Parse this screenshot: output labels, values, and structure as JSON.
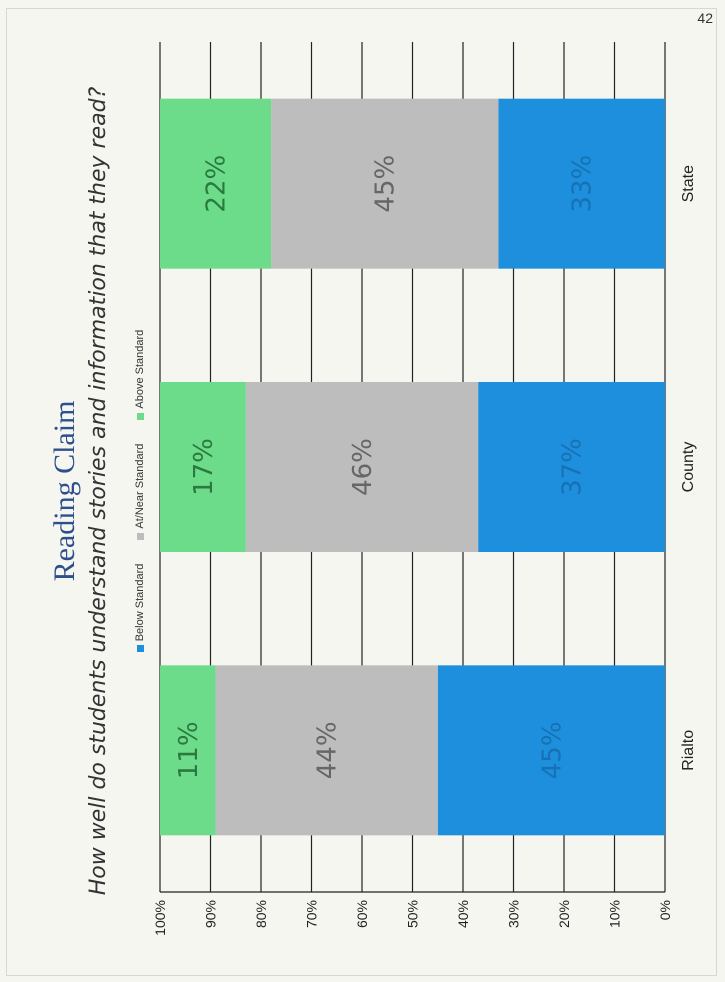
{
  "page_number": "42",
  "chart_data": {
    "type": "bar",
    "stacked": true,
    "title": "Reading Claim",
    "subtitle": "How well do students understand stories and information that they read?",
    "categories": [
      "Rialto",
      "County",
      "State"
    ],
    "series": [
      {
        "name": "Below Standard",
        "values": [
          45,
          37,
          33
        ],
        "color": "#1e8fdc",
        "labels": [
          "45%",
          "37%",
          "33%"
        ]
      },
      {
        "name": "At/Near Standard",
        "values": [
          44,
          46,
          45
        ],
        "color": "#bdbdbd",
        "labels": [
          "44%",
          "46%",
          "45%"
        ]
      },
      {
        "name": "Above Standard",
        "values": [
          11,
          17,
          22
        ],
        "color": "#6ddc8a",
        "labels": [
          "11%",
          "17%",
          "22%"
        ]
      }
    ],
    "ylim": [
      0,
      100
    ],
    "yticks": [
      "0%",
      "10%",
      "20%",
      "30%",
      "40%",
      "50%",
      "60%",
      "70%",
      "80%",
      "90%",
      "100%"
    ],
    "grid": true,
    "legend_position": "top"
  }
}
